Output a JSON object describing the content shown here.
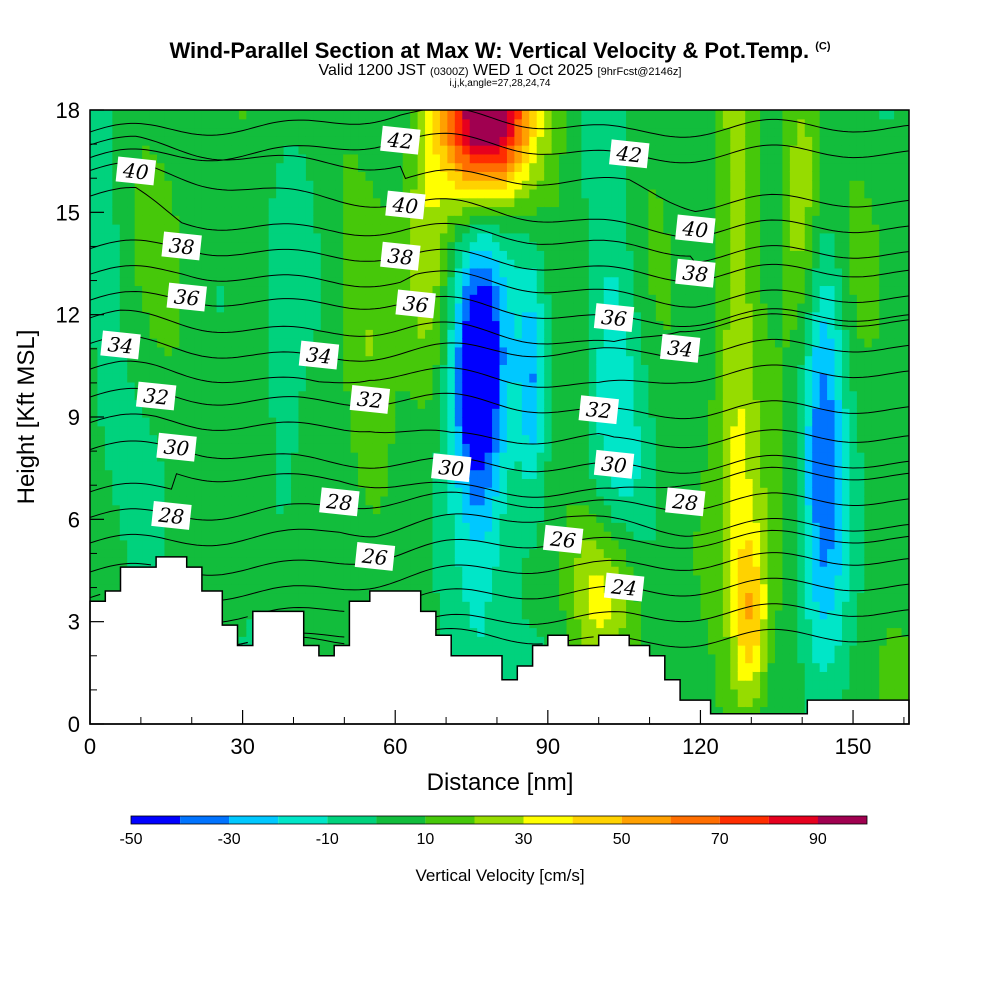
{
  "title": {
    "main": "Wind-Parallel Section at Max W: Vertical Velocity & Pot.Temp.",
    "copyright": "(C)",
    "valid_prefix": "Valid 1200 JST",
    "utc": "(0300Z)",
    "valid_date": "WED 1 Oct 2025",
    "forecast": "[9hrFcst@2146z]",
    "indices": "i,j,k,angle=27,28,24,74"
  },
  "chart_data": {
    "type": "contour-section",
    "xlabel": "Distance [nm]",
    "ylabel": "Height [Kft MSL]",
    "xlim": [
      0,
      161
    ],
    "ylim": [
      0,
      18
    ],
    "xticks": [
      0,
      30,
      60,
      90,
      120,
      150
    ],
    "yticks": [
      0,
      3,
      6,
      9,
      12,
      15,
      18
    ],
    "terrain": {
      "x": [
        0,
        3,
        3,
        6,
        6,
        13,
        13,
        19,
        19,
        22,
        22,
        26,
        26,
        29,
        29,
        32,
        32,
        42,
        42,
        45,
        45,
        48,
        48,
        51,
        51,
        55,
        55,
        65,
        65,
        68,
        68,
        71,
        71,
        81,
        81,
        84,
        84,
        87,
        87,
        90,
        90,
        94,
        94,
        100,
        100,
        106,
        106,
        110,
        110,
        113,
        113,
        116,
        116,
        122,
        122,
        141,
        141,
        161
      ],
      "y": [
        3.6,
        3.6,
        3.9,
        3.9,
        4.6,
        4.6,
        4.9,
        4.9,
        4.6,
        4.6,
        3.9,
        3.9,
        2.9,
        2.9,
        2.3,
        2.3,
        3.3,
        3.3,
        2.3,
        2.3,
        2.0,
        2.0,
        2.3,
        2.3,
        3.6,
        3.6,
        3.9,
        3.9,
        3.3,
        3.3,
        2.6,
        2.6,
        2.0,
        2.0,
        1.3,
        1.3,
        1.7,
        1.7,
        2.3,
        2.3,
        2.6,
        2.6,
        2.3,
        2.3,
        2.6,
        2.6,
        2.3,
        2.3,
        2.0,
        2.0,
        1.3,
        1.3,
        0.7,
        0.7,
        0.3,
        0.3,
        0.7,
        0.7
      ]
    },
    "vertical_velocity_cms": {
      "background": 5,
      "features": [
        {
          "x": 76,
          "y": 10.2,
          "sx": 3.5,
          "sy": 2.8,
          "w": -55
        },
        {
          "x": 87,
          "y": 10.0,
          "sx": 2.0,
          "sy": 2.2,
          "w": -30
        },
        {
          "x": 78,
          "y": 7.5,
          "sx": 4.5,
          "sy": 5.0,
          "w": -22
        },
        {
          "x": 103,
          "y": 11.0,
          "sx": 4.0,
          "sy": 5.0,
          "w": -18
        },
        {
          "x": 144,
          "y": 9.5,
          "sx": 3.0,
          "sy": 4.5,
          "w": -30
        },
        {
          "x": 144,
          "y": 4.5,
          "sx": 3.5,
          "sy": 4.0,
          "w": -15
        },
        {
          "x": 38,
          "y": 8.5,
          "sx": 2.5,
          "sy": 3.5,
          "w": -18
        },
        {
          "x": 3,
          "y": 12.5,
          "sx": 2.0,
          "sy": 3.0,
          "w": -12
        },
        {
          "x": 78,
          "y": 17.8,
          "sx": 6.0,
          "sy": 1.8,
          "w": 110
        },
        {
          "x": 66,
          "y": 13.0,
          "sx": 3.0,
          "sy": 3.5,
          "w": 20
        },
        {
          "x": 101,
          "y": 4.0,
          "sx": 5.0,
          "sy": 1.6,
          "w": 30
        },
        {
          "x": 127,
          "y": 10.0,
          "sx": 3.0,
          "sy": 7.0,
          "w": 25
        },
        {
          "x": 140,
          "y": 15.0,
          "sx": 3.0,
          "sy": 3.0,
          "w": 30
        },
        {
          "x": 55,
          "y": 9.0,
          "sx": 4.0,
          "sy": 3.0,
          "w": 12
        },
        {
          "x": 130,
          "y": 3.0,
          "sx": 2.5,
          "sy": 2.0,
          "w": 40
        }
      ],
      "colorbar": {
        "levels": [
          -50,
          -40,
          -30,
          -20,
          -10,
          0,
          10,
          20,
          30,
          40,
          50,
          60,
          70,
          80,
          90,
          100
        ],
        "colors": [
          "#0000ff",
          "#0073ff",
          "#00c8ff",
          "#00e6c8",
          "#00d27d",
          "#12bd3c",
          "#46c80a",
          "#96dc00",
          "#ffff00",
          "#ffd200",
          "#ffa000",
          "#ff6e00",
          "#ff2d00",
          "#e6001e",
          "#a00050"
        ],
        "tick_labels": [
          "-50",
          "-30",
          "-10",
          "10",
          "30",
          "50",
          "70",
          "90"
        ],
        "title": "Vertical Velocity [cm/s]"
      }
    },
    "potential_temperature_K": {
      "contour_interval": 1,
      "labels": [
        {
          "text": "24",
          "x": 105,
          "y": 4.0
        },
        {
          "text": "26",
          "x": 56,
          "y": 4.9
        },
        {
          "text": "26",
          "x": 93,
          "y": 5.4
        },
        {
          "text": "28",
          "x": 16,
          "y": 6.1
        },
        {
          "text": "28",
          "x": 49,
          "y": 6.5
        },
        {
          "text": "28",
          "x": 117,
          "y": 6.5
        },
        {
          "text": "30",
          "x": 17,
          "y": 8.1
        },
        {
          "text": "30",
          "x": 71,
          "y": 7.5
        },
        {
          "text": "30",
          "x": 103,
          "y": 7.6
        },
        {
          "text": "32",
          "x": 13,
          "y": 9.6
        },
        {
          "text": "32",
          "x": 55,
          "y": 9.5
        },
        {
          "text": "32",
          "x": 100,
          "y": 9.2
        },
        {
          "text": "34",
          "x": 6,
          "y": 11.1
        },
        {
          "text": "34",
          "x": 45,
          "y": 10.8
        },
        {
          "text": "34",
          "x": 116,
          "y": 11.0
        },
        {
          "text": "36",
          "x": 19,
          "y": 12.5
        },
        {
          "text": "36",
          "x": 64,
          "y": 12.3
        },
        {
          "text": "36",
          "x": 103,
          "y": 11.9
        },
        {
          "text": "38",
          "x": 18,
          "y": 14.0
        },
        {
          "text": "38",
          "x": 61,
          "y": 13.7
        },
        {
          "text": "38",
          "x": 119,
          "y": 13.2
        },
        {
          "text": "40",
          "x": 9,
          "y": 16.2
        },
        {
          "text": "40",
          "x": 62,
          "y": 15.2
        },
        {
          "text": "40",
          "x": 119,
          "y": 14.5
        },
        {
          "text": "42",
          "x": 61,
          "y": 17.1
        },
        {
          "text": "42",
          "x": 106,
          "y": 16.7
        }
      ]
    }
  }
}
